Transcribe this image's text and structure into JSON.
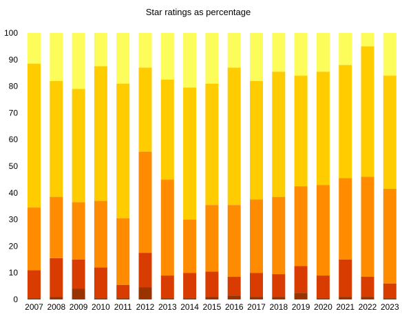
{
  "chart_data": {
    "type": "bar",
    "stacked": true,
    "title": "Star ratings as percentage",
    "xlabel": "",
    "ylabel": "",
    "ylim": [
      0,
      100
    ],
    "yticks": [
      0,
      10,
      20,
      30,
      40,
      50,
      60,
      70,
      80,
      90,
      100
    ],
    "grid": false,
    "legend": "none",
    "categories": [
      "2007",
      "2008",
      "2009",
      "2010",
      "2011",
      "2012",
      "2013",
      "2014",
      "2015",
      "2016",
      "2017",
      "2018",
      "2019",
      "2020",
      "2021",
      "2022",
      "2023"
    ],
    "series": [
      {
        "color": "#993300",
        "values": [
          0.5,
          1.0,
          4.0,
          0.5,
          0.5,
          4.5,
          0.5,
          0.5,
          1.0,
          1.5,
          1.0,
          1.0,
          2.5,
          0.5,
          1.0,
          1.0,
          0.5
        ]
      },
      {
        "color": "#d83c00",
        "values": [
          10.5,
          14.5,
          11.0,
          11.5,
          5.0,
          13.0,
          8.5,
          9.5,
          9.5,
          7.0,
          9.0,
          8.5,
          10.0,
          8.5,
          14.0,
          7.5,
          5.5
        ]
      },
      {
        "color": "#ff8c00",
        "values": [
          23.5,
          23.0,
          21.5,
          25.0,
          25.0,
          38.0,
          36.0,
          20.0,
          25.0,
          27.0,
          27.5,
          29.0,
          30.0,
          34.0,
          30.5,
          37.5,
          35.5
        ]
      },
      {
        "color": "#ffcc00",
        "values": [
          54.0,
          43.5,
          42.5,
          50.5,
          50.5,
          31.5,
          37.5,
          49.5,
          45.5,
          51.5,
          44.5,
          47.0,
          41.5,
          42.5,
          42.5,
          49.0,
          42.5
        ]
      },
      {
        "color": "#fcfc5a",
        "values": [
          11.5,
          18.0,
          21.0,
          12.5,
          19.0,
          13.0,
          17.5,
          20.5,
          19.0,
          13.0,
          18.0,
          14.5,
          16.0,
          14.5,
          12.0,
          5.0,
          16.0
        ]
      }
    ]
  }
}
